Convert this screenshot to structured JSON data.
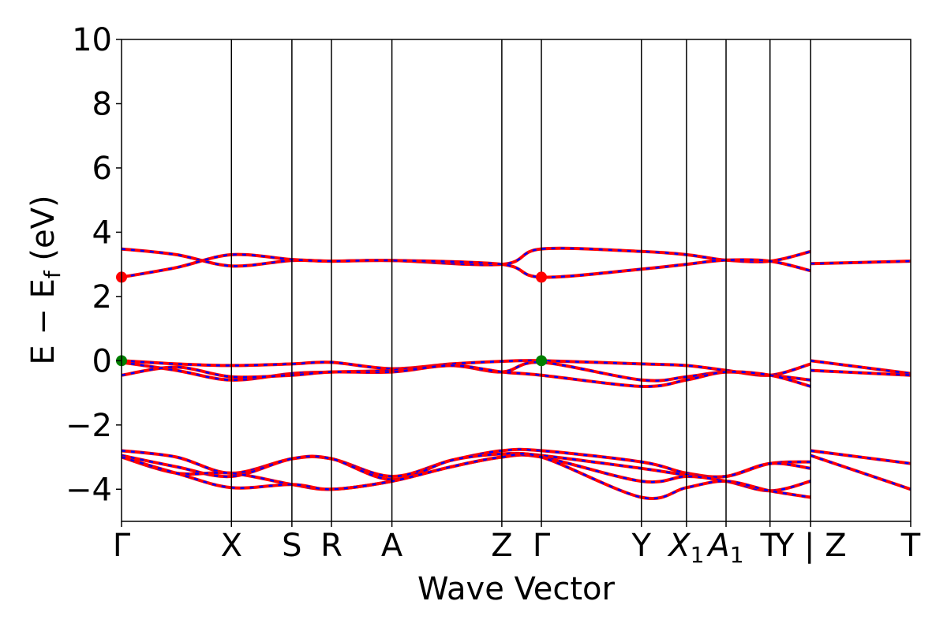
{
  "chart_data": {
    "type": "line",
    "title": "",
    "xlabel": "Wave Vector",
    "ylabel": "E − E",
    "ylabel_sub": "f",
    "ylabel_unit": " (eV)",
    "ylim": [
      -5,
      10
    ],
    "y_ticks": [
      {
        "value": 10,
        "label": "10"
      },
      {
        "value": 8,
        "label": "8"
      },
      {
        "value": 6,
        "label": "6"
      },
      {
        "value": 4,
        "label": "4"
      },
      {
        "value": 2,
        "label": "2"
      },
      {
        "value": 0,
        "label": "0"
      },
      {
        "value": -2,
        "label": "−2"
      },
      {
        "value": -4,
        "label": "−4"
      }
    ],
    "k_points": [
      {
        "k": 0.0,
        "label": "Γ"
      },
      {
        "k": 1.0,
        "label": "X"
      },
      {
        "k": 1.55,
        "label": "S"
      },
      {
        "k": 1.91,
        "label": "R"
      },
      {
        "k": 2.46,
        "label": "A"
      },
      {
        "k": 3.46,
        "label": "Z"
      },
      {
        "k": 3.82,
        "label": "Γ"
      },
      {
        "k": 4.73,
        "label": "Y"
      },
      {
        "k": 5.14,
        "label": "X",
        "sub": "1"
      },
      {
        "k": 5.5,
        "label": "A",
        "sub": "1"
      },
      {
        "k": 5.9,
        "label": "T"
      },
      {
        "k": 6.27,
        "label": "Y | Z"
      },
      {
        "k": 7.18,
        "label": "T"
      }
    ],
    "xlim": [
      0,
      7.18
    ],
    "band_colors": {
      "solid": "#ff0000",
      "dashed": "#0000ff"
    },
    "bands": [
      {
        "name": "",
        "x": [
          0,
          0.5,
          1.0,
          1.55,
          1.91,
          2.46,
          3.46,
          3.82,
          4.73,
          5.14,
          5.5,
          5.9,
          6.27
        ],
        "y": [
          3.48,
          3.3,
          2.95,
          3.12,
          3.1,
          3.12,
          3.0,
          3.48,
          3.4,
          3.3,
          3.13,
          3.1,
          3.4
        ]
      },
      {
        "name": "",
        "x": [
          0,
          0.5,
          1.0,
          1.55,
          1.91,
          2.46,
          3.46,
          3.82,
          4.73,
          5.14,
          5.5,
          5.9,
          6.27
        ],
        "y": [
          2.6,
          2.9,
          3.3,
          3.15,
          3.1,
          3.12,
          3.0,
          2.6,
          2.85,
          3.0,
          3.13,
          3.1,
          2.8
        ]
      },
      {
        "name": "",
        "x": [
          6.27,
          7.18
        ],
        "y": [
          3.02,
          3.1
        ]
      },
      {
        "name": "",
        "x": [
          0,
          0.5,
          1.0,
          1.55,
          1.91,
          2.46,
          3.0,
          3.46,
          3.82,
          4.73,
          5.14,
          5.5,
          5.9,
          6.27
        ],
        "y": [
          0.0,
          -0.1,
          -0.15,
          -0.1,
          -0.05,
          -0.25,
          -0.1,
          -0.02,
          0.0,
          -0.1,
          -0.15,
          -0.3,
          -0.45,
          -0.1
        ]
      },
      {
        "name": "",
        "x": [
          0,
          0.5,
          1.0,
          1.55,
          1.91,
          2.46,
          3.0,
          3.46,
          3.82,
          4.73,
          5.14,
          5.5,
          5.9,
          6.27
        ],
        "y": [
          -0.05,
          -0.3,
          -0.6,
          -0.4,
          -0.35,
          -0.3,
          -0.15,
          -0.35,
          -0.05,
          -0.6,
          -0.5,
          -0.35,
          -0.45,
          -0.6
        ]
      },
      {
        "name": "",
        "x": [
          0,
          0.5,
          1.0,
          1.55,
          1.91,
          2.46,
          3.0,
          3.46,
          3.82,
          4.73,
          5.14,
          5.5,
          5.9,
          6.27
        ],
        "y": [
          -0.45,
          -0.2,
          -0.5,
          -0.45,
          -0.35,
          -0.35,
          -0.15,
          -0.35,
          -0.45,
          -0.8,
          -0.6,
          -0.35,
          -0.45,
          -0.8
        ]
      },
      {
        "name": "",
        "x": [
          6.27,
          7.18
        ],
        "y": [
          0.0,
          -0.4
        ]
      },
      {
        "name": "",
        "x": [
          6.27,
          7.18
        ],
        "y": [
          -0.3,
          -0.45
        ]
      },
      {
        "name": "",
        "x": [
          0,
          0.5,
          1.0,
          1.55,
          1.91,
          2.46,
          3.0,
          3.46,
          3.82,
          4.73,
          5.14,
          5.5,
          5.9,
          6.27
        ],
        "y": [
          -2.8,
          -3.0,
          -3.5,
          -3.05,
          -3.05,
          -3.6,
          -3.1,
          -2.8,
          -2.8,
          -3.15,
          -3.5,
          -3.6,
          -3.2,
          -3.15
        ]
      },
      {
        "name": "",
        "x": [
          0,
          0.5,
          1.0,
          1.55,
          1.91,
          2.46,
          3.0,
          3.46,
          3.82,
          4.73,
          5.14,
          5.5,
          5.9,
          6.27
        ],
        "y": [
          -2.95,
          -3.3,
          -3.6,
          -3.05,
          -3.05,
          -3.7,
          -3.1,
          -2.9,
          -2.95,
          -3.35,
          -3.55,
          -3.6,
          -3.2,
          -3.35
        ]
      },
      {
        "name": "",
        "x": [
          0,
          0.5,
          1.0,
          1.55,
          1.91,
          2.46,
          3.0,
          3.46,
          3.82,
          4.73,
          5.14,
          5.5,
          5.9,
          6.27
        ],
        "y": [
          -3.0,
          -3.5,
          -3.5,
          -3.85,
          -4.0,
          -3.75,
          -3.3,
          -3.0,
          -3.0,
          -3.75,
          -3.6,
          -3.75,
          -4.05,
          -3.75
        ]
      },
      {
        "name": "",
        "x": [
          0,
          0.5,
          1.0,
          1.55,
          1.91,
          2.46,
          3.0,
          3.46,
          3.82,
          4.73,
          5.14,
          5.5,
          5.9,
          6.27
        ],
        "y": [
          -3.0,
          -3.5,
          -3.95,
          -3.85,
          -4.0,
          -3.75,
          -3.3,
          -3.0,
          -3.0,
          -4.25,
          -3.95,
          -3.75,
          -4.05,
          -4.25
        ]
      },
      {
        "name": "",
        "x": [
          6.27,
          7.18
        ],
        "y": [
          -2.8,
          -3.2
        ]
      },
      {
        "name": "",
        "x": [
          6.27,
          7.18
        ],
        "y": [
          -2.95,
          -4.0
        ]
      }
    ],
    "markers": [
      {
        "type": "cbm",
        "color": "#ff0000",
        "points": [
          {
            "x": 0.0,
            "y": 2.6
          },
          {
            "x": 3.82,
            "y": 2.6
          }
        ]
      },
      {
        "type": "vbm",
        "color": "#008000",
        "points": [
          {
            "x": 0.0,
            "y": 0.0
          },
          {
            "x": 3.82,
            "y": 0.0
          }
        ]
      }
    ]
  }
}
